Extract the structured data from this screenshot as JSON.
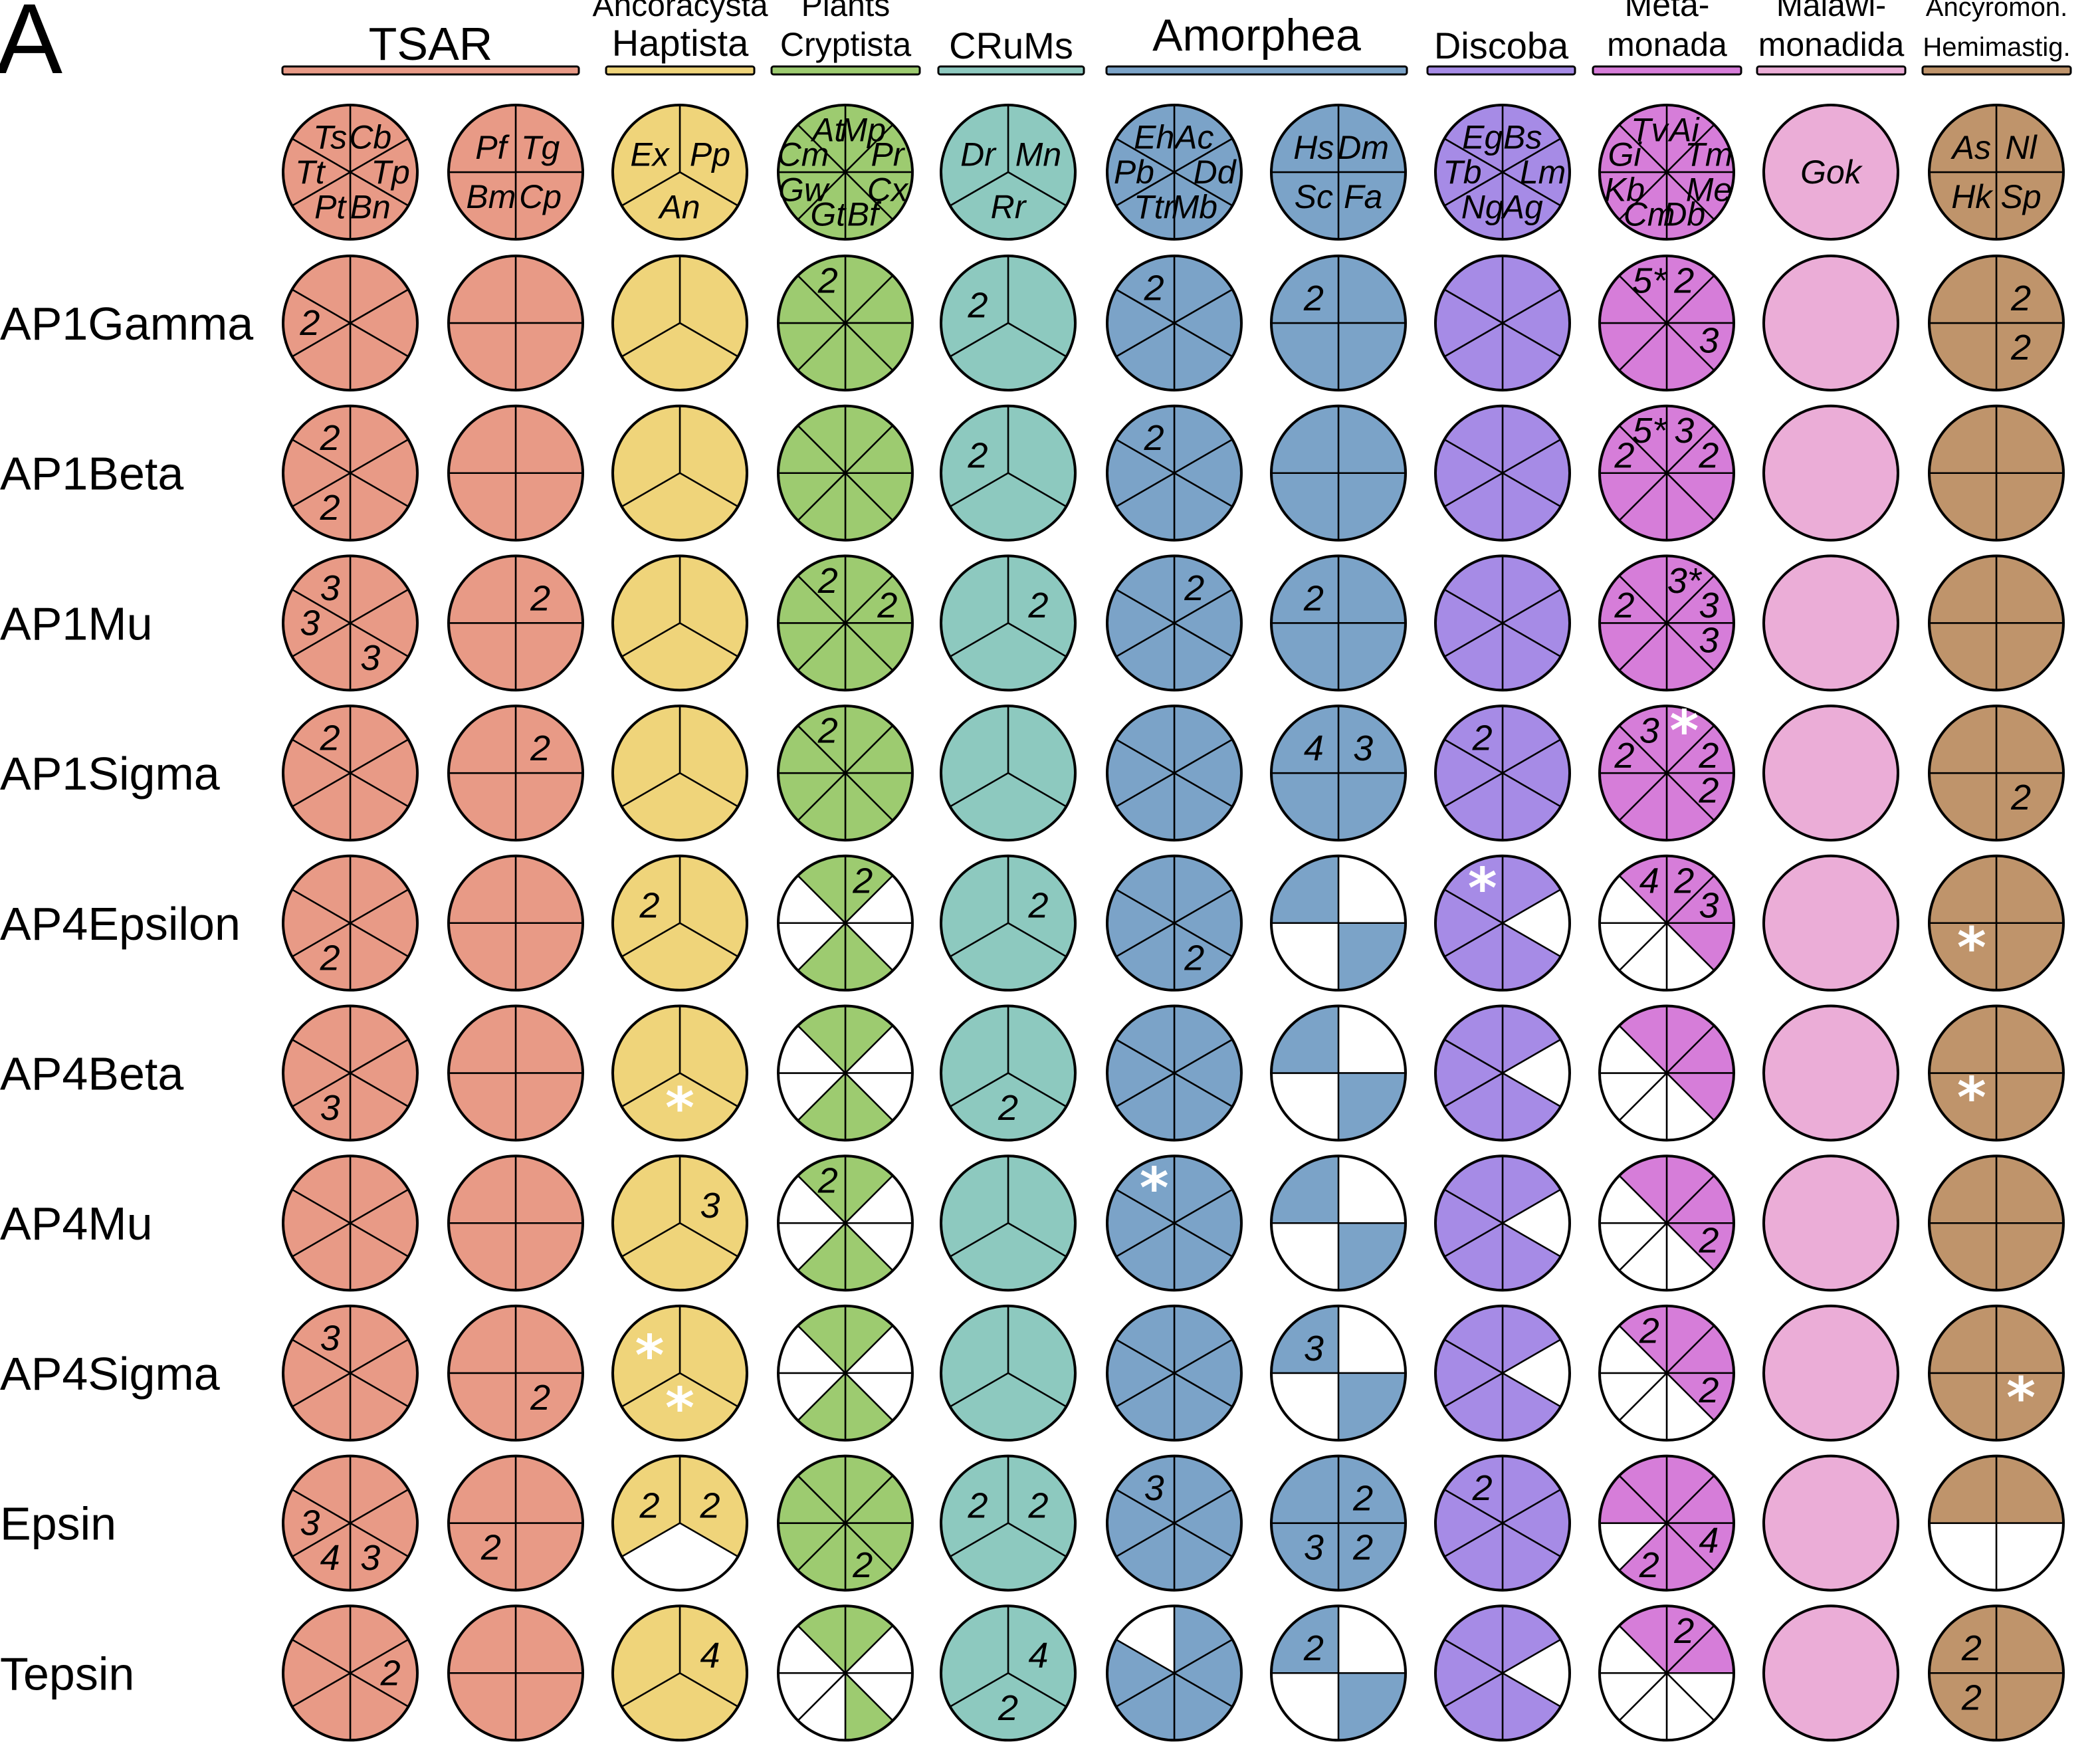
{
  "panel_label": "A",
  "colors": {
    "tsar": "#E89A86",
    "haptista": "#EFD47A",
    "cryptista": "#9DCB70",
    "crums": "#8DC9BF",
    "amorphea": "#7BA3C8",
    "discoba": "#A68BE6",
    "metamonada": "#D67DD9",
    "malawimonadida": "#EBADD7",
    "ancyromonadida": "#BF946B",
    "empty": "#FFFFFF",
    "outline": "#000000"
  },
  "groups": [
    {
      "key": "tsar",
      "lines": [
        "TSAR"
      ]
    },
    {
      "key": "haptista",
      "lines": [
        "Ancoracysta",
        "Haptista"
      ]
    },
    {
      "key": "cryptista",
      "lines": [
        "Plants",
        "Cryptista"
      ]
    },
    {
      "key": "crums",
      "lines": [
        "CRuMs"
      ]
    },
    {
      "key": "amorphea",
      "lines": [
        "Amorphea"
      ]
    },
    {
      "key": "discoba",
      "lines": [
        "Discoba"
      ]
    },
    {
      "key": "metamonada",
      "lines": [
        "Meta-",
        "monada"
      ]
    },
    {
      "key": "malawimonadida",
      "lines": [
        "Malawi-",
        "monadida"
      ]
    },
    {
      "key": "ancyromonadida",
      "lines": [
        "Ancyromon.",
        "Hemimastig."
      ]
    }
  ],
  "columns": [
    {
      "group": "tsar",
      "segments": 6,
      "species": [
        "Cb",
        "Tp",
        "Bn",
        "Pt",
        "Tt",
        "Ts"
      ]
    },
    {
      "group": "tsar",
      "segments": 4,
      "species": [
        "Tg",
        "Cp",
        "Bm",
        "Pf"
      ]
    },
    {
      "group": "haptista",
      "segments": 3,
      "species": [
        "Pp",
        "An",
        "Ex"
      ]
    },
    {
      "group": "cryptista",
      "segments": 8,
      "species": [
        "Mp",
        "Pr",
        "Cx",
        "Bf",
        "Gt",
        "Gw",
        "Cm",
        "At"
      ]
    },
    {
      "group": "crums",
      "segments": 3,
      "species": [
        "Mn",
        "Rr",
        "Dr"
      ]
    },
    {
      "group": "amorphea",
      "segments": 6,
      "species": [
        "Ac",
        "Dd",
        "Mb",
        "Ttr",
        "Pb",
        "Eh"
      ]
    },
    {
      "group": "amorphea",
      "segments": 4,
      "species": [
        "Dm",
        "Fa",
        "Sc",
        "Hs"
      ]
    },
    {
      "group": "discoba",
      "segments": 6,
      "species": [
        "Bs",
        "Lm",
        "Ag",
        "Ng",
        "Tb",
        "Eg"
      ]
    },
    {
      "group": "metamonada",
      "segments": 8,
      "species": [
        "Ai",
        "Tm",
        "Me",
        "Db",
        "Cm",
        "Kb",
        "Gi",
        "Tv"
      ]
    },
    {
      "group": "malawimonadida",
      "segments": 1,
      "species": [
        "Gok"
      ]
    },
    {
      "group": "ancyromonadida",
      "segments": 4,
      "species": [
        "Nl",
        "Sp",
        "Hk",
        "As"
      ]
    }
  ],
  "rows": [
    {
      "label": "AP1Gamma",
      "cells": [
        {
          "l": {
            "4": "2"
          }
        },
        {},
        {},
        {
          "l": {
            "7": "2"
          }
        },
        {
          "l": {
            "2": "2"
          }
        },
        {
          "l": {
            "5": "2"
          }
        },
        {
          "l": {
            "3": "2"
          }
        },
        {},
        {
          "l": {
            "7": "5*",
            "0": "2",
            "2": "3"
          }
        },
        {},
        {
          "l": {
            "0": "2",
            "1": "2"
          }
        }
      ]
    },
    {
      "label": "AP1Beta",
      "cells": [
        {
          "l": {
            "5": "2",
            "3": "2"
          }
        },
        {},
        {},
        {},
        {
          "l": {
            "2": "2"
          }
        },
        {
          "l": {
            "5": "2"
          }
        },
        {},
        {},
        {
          "l": {
            "7": "5*",
            "0": "3",
            "6": "2",
            "1": "2"
          }
        },
        {},
        {}
      ]
    },
    {
      "label": "AP1Mu",
      "cells": [
        {
          "l": {
            "5": "3",
            "4": "3",
            "2": "3"
          }
        },
        {
          "l": {
            "0": "2"
          }
        },
        {},
        {
          "l": {
            "7": "2",
            "1": "2"
          }
        },
        {
          "l": {
            "0": "2"
          }
        },
        {
          "l": {
            "0": "2"
          }
        },
        {
          "l": {
            "3": "2"
          }
        },
        {},
        {
          "l": {
            "0": "3*",
            "1": "3",
            "2": "3",
            "6": "2"
          }
        },
        {},
        {}
      ]
    },
    {
      "label": "AP1Sigma",
      "cells": [
        {
          "l": {
            "5": "2"
          }
        },
        {
          "l": {
            "0": "2"
          }
        },
        {},
        {
          "l": {
            "7": "2"
          }
        },
        {},
        {},
        {
          "l": {
            "3": "4",
            "0": "3"
          }
        },
        {
          "l": {
            "5": "2"
          }
        },
        {
          "l": {
            "7": "3",
            "0": "*",
            "6": "2",
            "1": "2",
            "2": "2"
          }
        },
        {},
        {
          "l": {
            "1": "2"
          }
        }
      ]
    },
    {
      "label": "AP4Epsilon",
      "cells": [
        {
          "l": {
            "3": "2"
          }
        },
        {},
        {
          "l": {
            "2": "2"
          }
        },
        {
          "l": {
            "0": "2"
          },
          "w": [
            1,
            2,
            5,
            6
          ]
        },
        {
          "l": {
            "0": "2"
          }
        },
        {
          "l": {
            "2": "2"
          }
        },
        {
          "w": [
            0,
            2
          ]
        },
        {
          "l": {
            "5": "*"
          },
          "w": [
            1
          ]
        },
        {
          "l": {
            "7": "4",
            "0": "2",
            "1": "3"
          },
          "w": [
            3,
            4,
            5,
            6
          ]
        },
        {},
        {
          "l": {
            "2": "*"
          }
        }
      ]
    },
    {
      "label": "AP4Beta",
      "cells": [
        {
          "l": {
            "3": "3"
          }
        },
        {},
        {
          "l": {
            "1": "*"
          }
        },
        {
          "w": [
            1,
            2,
            5,
            6
          ]
        },
        {
          "l": {
            "1": "2"
          }
        },
        {},
        {
          "w": [
            0,
            2
          ]
        },
        {
          "w": [
            1
          ]
        },
        {
          "w": [
            3,
            4,
            5,
            6
          ]
        },
        {},
        {
          "l": {
            "2": "*"
          }
        }
      ]
    },
    {
      "label": "AP4Mu",
      "cells": [
        {},
        {},
        {
          "l": {
            "0": "3"
          }
        },
        {
          "l": {
            "7": "2"
          },
          "w": [
            1,
            2,
            5,
            6
          ]
        },
        {},
        {
          "l": {
            "5": "*"
          }
        },
        {
          "w": [
            0,
            2
          ]
        },
        {
          "w": [
            1
          ]
        },
        {
          "l": {
            "2": "2"
          },
          "w": [
            3,
            4,
            5,
            6
          ]
        },
        {},
        {}
      ]
    },
    {
      "label": "AP4Sigma",
      "cells": [
        {
          "l": {
            "5": "3"
          }
        },
        {
          "l": {
            "1": "2"
          }
        },
        {
          "l": {
            "2": "*",
            "1": "*"
          }
        },
        {
          "w": [
            1,
            2,
            5,
            6
          ]
        },
        {},
        {},
        {
          "l": {
            "3": "3"
          },
          "w": [
            0,
            2
          ]
        },
        {
          "w": [
            1
          ]
        },
        {
          "l": {
            "7": "2",
            "2": "2"
          },
          "w": [
            3,
            4,
            5,
            6
          ]
        },
        {},
        {
          "l": {
            "1": "*"
          }
        }
      ]
    },
    {
      "label": "Epsin",
      "cells": [
        {
          "l": {
            "4": "3",
            "3": "4",
            "2": "3"
          }
        },
        {
          "l": {
            "2": "2"
          }
        },
        {
          "l": {
            "2": "2",
            "0": "2"
          },
          "w": [
            1
          ]
        },
        {
          "l": {
            "3": "2"
          }
        },
        {
          "l": {
            "2": "2",
            "0": "2"
          }
        },
        {
          "l": {
            "5": "3"
          }
        },
        {
          "l": {
            "0": "2",
            "2": "3",
            "1": "2"
          }
        },
        {
          "l": {
            "5": "2"
          }
        },
        {
          "l": {
            "2": "4",
            "4": "2"
          },
          "w": [
            5
          ]
        },
        {},
        {
          "w": [
            1,
            2
          ]
        }
      ]
    },
    {
      "label": "Tepsin",
      "cells": [
        {
          "l": {
            "1": "2"
          }
        },
        {},
        {
          "l": {
            "0": "4"
          }
        },
        {
          "w": [
            1,
            2,
            4,
            5,
            6
          ]
        },
        {
          "l": {
            "0": "4",
            "1": "2"
          }
        },
        {
          "w": [
            5
          ]
        },
        {
          "l": {
            "3": "2"
          },
          "w": [
            0,
            2
          ]
        },
        {
          "w": [
            1
          ]
        },
        {
          "l": {
            "0": "2"
          },
          "w": [
            2,
            3,
            4,
            5,
            6
          ]
        },
        {},
        {
          "l": {
            "3": "2",
            "2": "2"
          }
        }
      ]
    }
  ]
}
